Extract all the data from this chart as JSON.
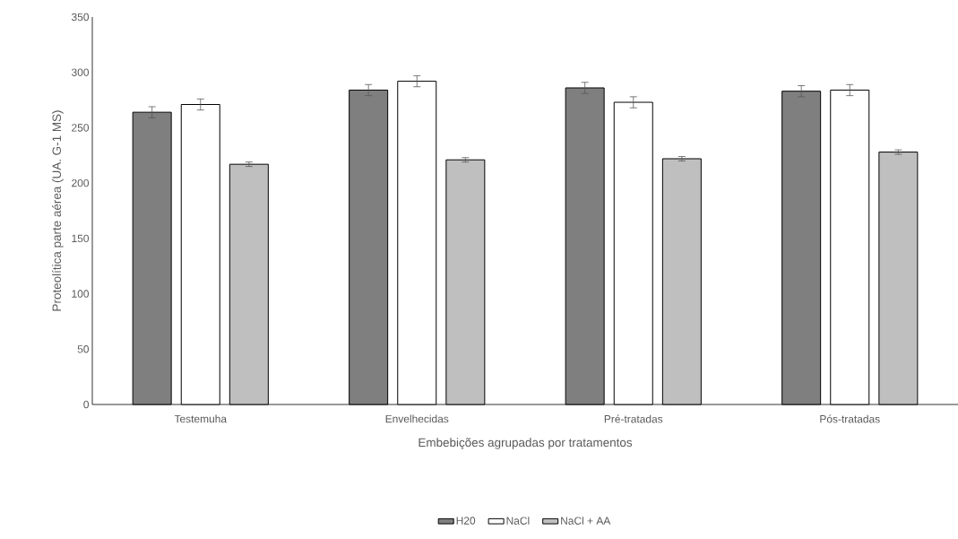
{
  "chart_data": {
    "type": "bar",
    "xlabel": "Embebições agrupadas por tratamentos",
    "ylabel": "Proteolítica parte aérea (UA. G-1 MS)",
    "categories": [
      "Testemuha",
      "Envelhecidas",
      "Pré-tratadas",
      "Pós-tratadas"
    ],
    "series": [
      {
        "name": "H20",
        "color": "#7f7f7f",
        "values": [
          264,
          284,
          286,
          283
        ],
        "errors": [
          5,
          5,
          5,
          5
        ]
      },
      {
        "name": "NaCl",
        "color": "#ffffff",
        "values": [
          271,
          292,
          273,
          284
        ],
        "errors": [
          5,
          5,
          5,
          5
        ]
      },
      {
        "name": "NaCl + AA",
        "color": "#bfbfbf",
        "values": [
          217,
          221,
          222,
          228
        ],
        "errors": [
          2,
          2,
          2,
          2
        ]
      }
    ],
    "ylim": [
      0,
      350
    ],
    "yticks": [
      0,
      50,
      100,
      150,
      200,
      250,
      300,
      350
    ],
    "grid": false,
    "legend": "bottom"
  }
}
